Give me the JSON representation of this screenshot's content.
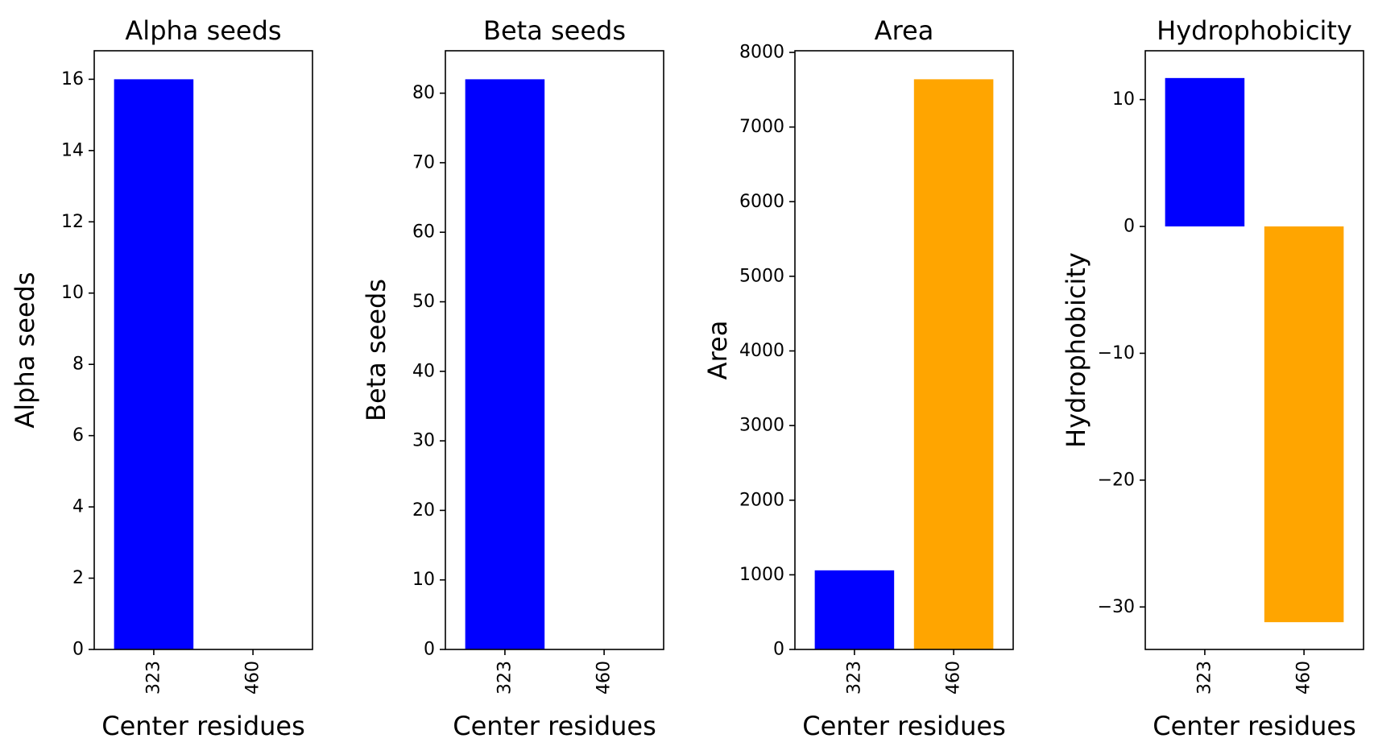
{
  "chart_data": [
    {
      "type": "bar",
      "title": "Alpha seeds",
      "xlabel": "Center residues",
      "ylabel": "Alpha seeds",
      "categories": [
        "323",
        "460"
      ],
      "values": [
        16,
        0
      ],
      "colors": [
        "#0000ff",
        "#ffa500"
      ],
      "ylim": [
        0,
        16.8
      ],
      "yticks": [
        0,
        2,
        4,
        6,
        8,
        10,
        12,
        14,
        16
      ],
      "ytick_labels": [
        "0",
        "2",
        "4",
        "6",
        "8",
        "10",
        "12",
        "14",
        "16"
      ],
      "grid": false
    },
    {
      "type": "bar",
      "title": "Beta seeds",
      "xlabel": "Center residues",
      "ylabel": "Beta seeds",
      "categories": [
        "323",
        "460"
      ],
      "values": [
        82,
        0
      ],
      "colors": [
        "#0000ff",
        "#ffa500"
      ],
      "ylim": [
        0,
        86.1
      ],
      "yticks": [
        0,
        10,
        20,
        30,
        40,
        50,
        60,
        70,
        80
      ],
      "ytick_labels": [
        "0",
        "10",
        "20",
        "30",
        "40",
        "50",
        "60",
        "70",
        "80"
      ],
      "grid": false
    },
    {
      "type": "bar",
      "title": "Area",
      "xlabel": "Center residues",
      "ylabel": "Area",
      "categories": [
        "323",
        "460"
      ],
      "values": [
        1060,
        7640
      ],
      "colors": [
        "#0000ff",
        "#ffa500"
      ],
      "ylim": [
        0,
        8022
      ],
      "yticks": [
        0,
        1000,
        2000,
        3000,
        4000,
        5000,
        6000,
        7000,
        8000
      ],
      "ytick_labels": [
        "0",
        "1000",
        "2000",
        "3000",
        "4000",
        "5000",
        "6000",
        "7000",
        "8000"
      ],
      "grid": false
    },
    {
      "type": "bar",
      "title": "Hydrophobicity",
      "xlabel": "Center residues",
      "ylabel": "Hydrophobicity",
      "categories": [
        "323",
        "460"
      ],
      "values": [
        11.7,
        -31.2
      ],
      "colors": [
        "#0000ff",
        "#ffa500"
      ],
      "ylim": [
        -33.35,
        13.85
      ],
      "yticks": [
        -30,
        -20,
        -10,
        0,
        10
      ],
      "ytick_labels": [
        "−30",
        "−20",
        "−10",
        "0",
        "10"
      ],
      "grid": false
    }
  ]
}
